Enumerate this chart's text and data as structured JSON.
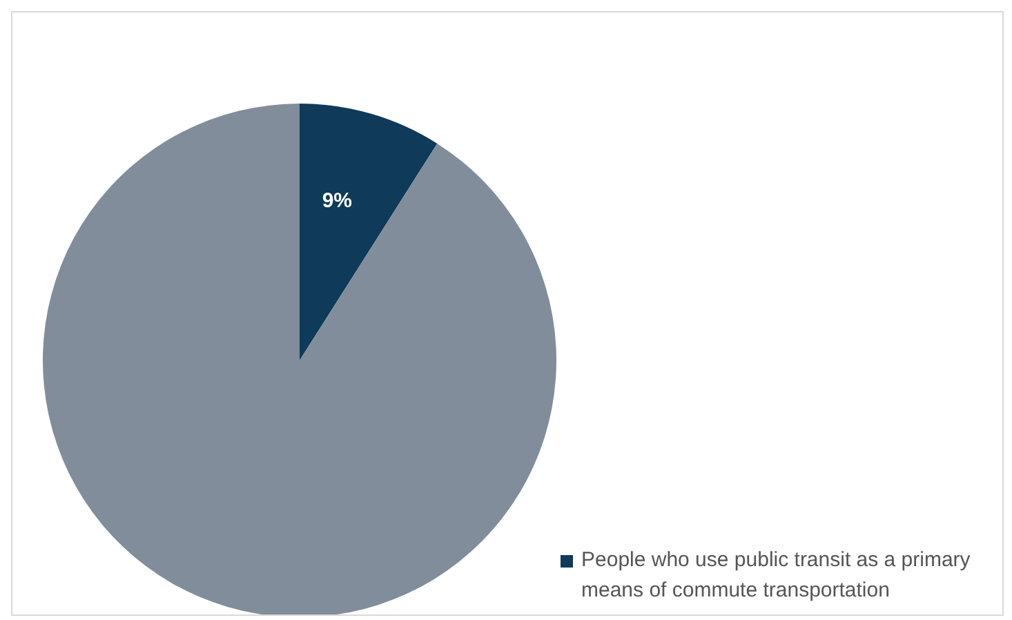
{
  "chart_data": {
    "type": "pie",
    "categories": [
      "People who use public transit as a primary means of commute transportation",
      null
    ],
    "values": [
      9,
      91
    ],
    "colors": [
      "#0f3a5a",
      "#828d9b"
    ],
    "value_labels": [
      "9%",
      null
    ],
    "legend": "bottom right"
  }
}
